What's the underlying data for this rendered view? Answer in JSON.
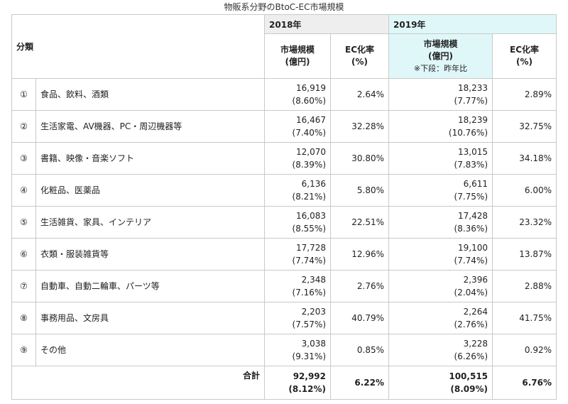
{
  "title": "物販系分野のBtoC-EC市場規模",
  "header": {
    "category": "分類",
    "year_2018": "2018年",
    "year_2019": "2019年",
    "market_size_line1": "市場規模",
    "market_size_line2": "(億円)",
    "note_lower": "※下段：昨年比",
    "ec_rate_line1": "EC化率",
    "ec_rate_line2": "(%)"
  },
  "rows": [
    {
      "num": "①",
      "name": "食品、飲料、酒類",
      "v2018": "16,919",
      "g2018": "(8.60%)",
      "r2018": "2.64%",
      "v2019": "18,233",
      "g2019": "(7.77%)",
      "r2019": "2.89%"
    },
    {
      "num": "②",
      "name": "生活家電、AV機器、PC・周辺機器等",
      "v2018": "16,467",
      "g2018": "(7.40%)",
      "r2018": "32.28%",
      "v2019": "18,239",
      "g2019": "(10.76%)",
      "r2019": "32.75%"
    },
    {
      "num": "③",
      "name": "書籍、映像・音楽ソフト",
      "v2018": "12,070",
      "g2018": "(8.39%)",
      "r2018": "30.80%",
      "v2019": "13,015",
      "g2019": "(7.83%)",
      "r2019": "34.18%"
    },
    {
      "num": "④",
      "name": "化粧品、医薬品",
      "v2018": "6,136",
      "g2018": "(8.21%)",
      "r2018": "5.80%",
      "v2019": "6,611",
      "g2019": "(7.75%)",
      "r2019": "6.00%"
    },
    {
      "num": "⑤",
      "name": "生活雑貨、家具、インテリア",
      "v2018": "16,083",
      "g2018": "(8.55%)",
      "r2018": "22.51%",
      "v2019": "17,428",
      "g2019": "(8.36%)",
      "r2019": "23.32%"
    },
    {
      "num": "⑥",
      "name": "衣類・服装雑貨等",
      "v2018": "17,728",
      "g2018": "(7.74%)",
      "r2018": "12.96%",
      "v2019": "19,100",
      "g2019": "(7.74%)",
      "r2019": "13.87%"
    },
    {
      "num": "⑦",
      "name": "自動車、自動二輪車、パーツ等",
      "v2018": "2,348",
      "g2018": "(7.16%)",
      "r2018": "2.76%",
      "v2019": "2,396",
      "g2019": "(2.04%)",
      "r2019": "2.88%"
    },
    {
      "num": "⑧",
      "name": "事務用品、文房具",
      "v2018": "2,203",
      "g2018": "(7.57%)",
      "r2018": "40.79%",
      "v2019": "2,264",
      "g2019": "(2.76%)",
      "r2019": "41.75%"
    },
    {
      "num": "⑨",
      "name": "その他",
      "v2018": "3,038",
      "g2018": "(9.31%)",
      "r2018": "0.85%",
      "v2019": "3,228",
      "g2019": "(6.26%)",
      "r2019": "0.92%"
    }
  ],
  "total": {
    "label": "合計",
    "v2018": "92,992",
    "g2018": "(8.12%)",
    "r2018": "6.22%",
    "v2019": "100,515",
    "g2019": "(8.09%)",
    "r2019": "6.76%"
  }
}
